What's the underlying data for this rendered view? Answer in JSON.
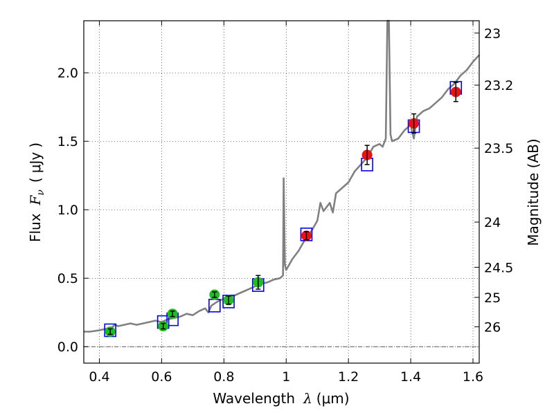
{
  "chart_data": {
    "type": "scatter",
    "xlabel": {
      "prefix": "Wavelength",
      "symbol": "λ",
      "open": "(",
      "unit": "μm",
      "close": ")"
    },
    "ylabel": {
      "prefix": "Flux",
      "symbol": "F",
      "subscript": "ν",
      "open": "(",
      "unit": "μJy",
      "close": ")"
    },
    "y2label": "Magnitude (AB)",
    "xlim": [
      0.35,
      1.62
    ],
    "ylim": [
      -0.12,
      2.38
    ],
    "grid": true,
    "x_ticks": [
      0.4,
      0.6,
      0.8,
      1.0,
      1.2,
      1.4,
      1.6
    ],
    "x_tick_labels": [
      "0.4",
      "0.6",
      "0.8",
      "1",
      "1.2",
      "1.4",
      "1.6"
    ],
    "y_ticks": [
      0.0,
      0.5,
      1.0,
      1.5,
      2.0
    ],
    "y_tick_labels": [
      "0.0",
      "0.5",
      "1.0",
      "1.5",
      "2.0"
    ],
    "right_ticks": [
      {
        "label": "23",
        "flux": 2.29
      },
      {
        "label": "23.2",
        "flux": 1.91
      },
      {
        "label": "23.5",
        "flux": 1.45
      },
      {
        "label": "24",
        "flux": 0.91
      },
      {
        "label": "24.5",
        "flux": 0.58
      },
      {
        "label": "25",
        "flux": 0.36
      },
      {
        "label": "26",
        "flux": 0.145
      }
    ],
    "zero_line": 0.0,
    "colors": {
      "model": "#808080",
      "box": "#0000ee",
      "green": "#22bb22",
      "red": "#ee1111",
      "errorbar": "#000000"
    },
    "series": [
      {
        "name": "model spectrum",
        "kind": "line",
        "points": [
          [
            0.35,
            0.11
          ],
          [
            0.37,
            0.11
          ],
          [
            0.4,
            0.12
          ],
          [
            0.42,
            0.13
          ],
          [
            0.44,
            0.14
          ],
          [
            0.45,
            0.16
          ],
          [
            0.46,
            0.15
          ],
          [
            0.48,
            0.16
          ],
          [
            0.5,
            0.17
          ],
          [
            0.52,
            0.16
          ],
          [
            0.54,
            0.17
          ],
          [
            0.56,
            0.18
          ],
          [
            0.58,
            0.19
          ],
          [
            0.6,
            0.18
          ],
          [
            0.62,
            0.2
          ],
          [
            0.64,
            0.21
          ],
          [
            0.66,
            0.22
          ],
          [
            0.68,
            0.24
          ],
          [
            0.7,
            0.23
          ],
          [
            0.72,
            0.26
          ],
          [
            0.74,
            0.28
          ],
          [
            0.75,
            0.25
          ],
          [
            0.76,
            0.3
          ],
          [
            0.78,
            0.33
          ],
          [
            0.8,
            0.35
          ],
          [
            0.81,
            0.33
          ],
          [
            0.82,
            0.36
          ],
          [
            0.84,
            0.38
          ],
          [
            0.86,
            0.4
          ],
          [
            0.88,
            0.42
          ],
          [
            0.9,
            0.44
          ],
          [
            0.92,
            0.46
          ],
          [
            0.94,
            0.47
          ],
          [
            0.96,
            0.49
          ],
          [
            0.98,
            0.5
          ],
          [
            0.99,
            0.52
          ],
          [
            0.992,
            1.23
          ],
          [
            0.996,
            0.6
          ],
          [
            1.0,
            0.56
          ],
          [
            1.02,
            0.64
          ],
          [
            1.04,
            0.7
          ],
          [
            1.06,
            0.78
          ],
          [
            1.08,
            0.84
          ],
          [
            1.1,
            0.92
          ],
          [
            1.11,
            1.05
          ],
          [
            1.12,
            0.99
          ],
          [
            1.14,
            1.05
          ],
          [
            1.15,
            0.98
          ],
          [
            1.16,
            1.12
          ],
          [
            1.18,
            1.16
          ],
          [
            1.2,
            1.2
          ],
          [
            1.22,
            1.28
          ],
          [
            1.24,
            1.33
          ],
          [
            1.26,
            1.38
          ],
          [
            1.28,
            1.46
          ],
          [
            1.3,
            1.48
          ],
          [
            1.31,
            1.46
          ],
          [
            1.32,
            1.52
          ],
          [
            1.325,
            2.38
          ],
          [
            1.33,
            2.38
          ],
          [
            1.335,
            1.55
          ],
          [
            1.34,
            1.5
          ],
          [
            1.36,
            1.52
          ],
          [
            1.38,
            1.58
          ],
          [
            1.4,
            1.62
          ],
          [
            1.41,
            1.52
          ],
          [
            1.42,
            1.68
          ],
          [
            1.44,
            1.72
          ],
          [
            1.46,
            1.74
          ],
          [
            1.48,
            1.78
          ],
          [
            1.5,
            1.82
          ],
          [
            1.52,
            1.88
          ],
          [
            1.54,
            1.92
          ],
          [
            1.56,
            1.98
          ],
          [
            1.58,
            2.02
          ],
          [
            1.6,
            2.08
          ],
          [
            1.62,
            2.13
          ]
        ]
      },
      {
        "name": "model synthetic photometry",
        "kind": "box",
        "points": [
          [
            0.435,
            0.12
          ],
          [
            0.605,
            0.18
          ],
          [
            0.635,
            0.2
          ],
          [
            0.77,
            0.3
          ],
          [
            0.815,
            0.33
          ],
          [
            0.91,
            0.45
          ],
          [
            1.065,
            0.82
          ],
          [
            1.26,
            1.33
          ],
          [
            1.41,
            1.61
          ],
          [
            1.545,
            1.89
          ]
        ]
      },
      {
        "name": "green photometry",
        "kind": "errorbar",
        "points": [
          [
            0.435,
            0.11,
            0.02
          ],
          [
            0.605,
            0.15,
            0.02
          ],
          [
            0.635,
            0.24,
            0.02
          ],
          [
            0.77,
            0.38,
            0.02
          ],
          [
            0.815,
            0.34,
            0.03
          ],
          [
            0.91,
            0.47,
            0.05
          ]
        ]
      },
      {
        "name": "red photometry",
        "kind": "errorbar",
        "points": [
          [
            1.065,
            0.81,
            0.03
          ],
          [
            1.26,
            1.4,
            0.07
          ],
          [
            1.41,
            1.63,
            0.07
          ],
          [
            1.545,
            1.86,
            0.07
          ]
        ]
      }
    ]
  }
}
